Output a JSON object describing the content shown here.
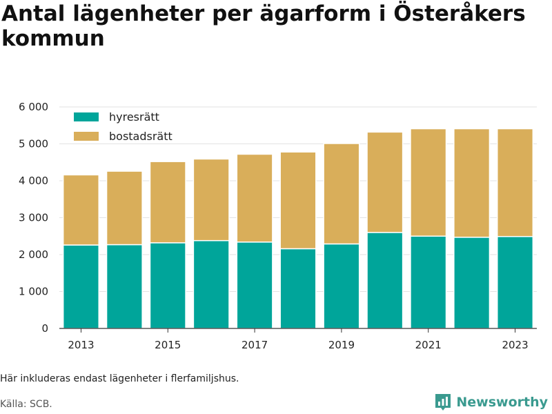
{
  "title": "Antal lägenheter per ägarform i Österåkers kommun",
  "note": "Här inkluderas endast lägenheter i flerfamiljshus.",
  "source": "Källa: SCB.",
  "brand": {
    "name": "Newsworthy",
    "icon": "newsworthy-logo-icon",
    "color": "#3a9a8f"
  },
  "chart_data": {
    "type": "bar",
    "stacked": true,
    "x": [
      2013,
      2014,
      2015,
      2016,
      2017,
      2018,
      2019,
      2020,
      2021,
      2022,
      2023
    ],
    "x_tick_labels": [
      "2013",
      "2015",
      "2017",
      "2019",
      "2021",
      "2023"
    ],
    "y_tick_labels": [
      "0",
      "1 000",
      "2 000",
      "3 000",
      "4 000",
      "5 000",
      "6 000"
    ],
    "ylim": [
      0,
      6000
    ],
    "grid": true,
    "legend_position": "top-left",
    "series": [
      {
        "name": "hyresrätt",
        "color": "#00a59a",
        "values": [
          2260,
          2270,
          2320,
          2380,
          2340,
          2160,
          2290,
          2600,
          2500,
          2470,
          2490
        ]
      },
      {
        "name": "bostadsrätt",
        "color": "#d9ae5a",
        "values": [
          1900,
          1990,
          2200,
          2210,
          2380,
          2620,
          2720,
          2720,
          2910,
          2940,
          2920
        ]
      }
    ]
  }
}
